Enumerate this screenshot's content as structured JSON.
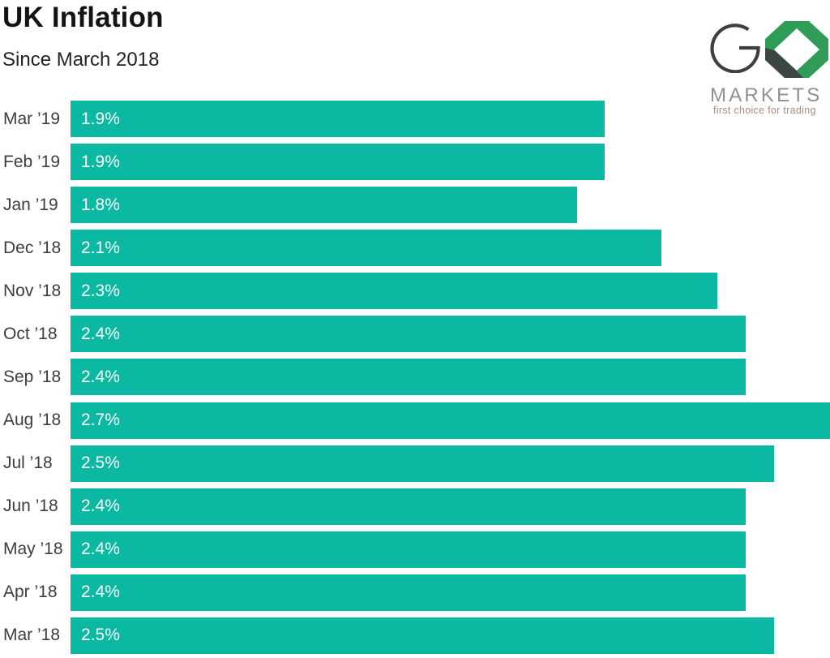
{
  "header": {
    "title": "UK Inflation",
    "subtitle": "Since March 2018"
  },
  "logo": {
    "brand": "GO",
    "brand_name": "MARKETS",
    "tagline": "first choice for trading",
    "colors": {
      "g_stroke": "#3b413f",
      "octagon_green": "#2f9c57",
      "octagon_dark": "#3e4643",
      "diamond_white": "#ffffff",
      "markets_gray": "#8f9091",
      "tagline_brown": "#a78e7f"
    }
  },
  "chart_data": {
    "type": "bar",
    "orientation": "horizontal",
    "title": "UK Inflation",
    "subtitle": "Since March 2018",
    "categories": [
      "Mar ’19",
      "Feb ’19",
      "Jan ’19",
      "Dec ’18",
      "Nov ’18",
      "Oct ’18",
      "Sep ’18",
      "Aug ’18",
      "Jul ’18",
      "Jun ’18",
      "May ’18",
      "Apr ’18",
      "Mar ’18"
    ],
    "values": [
      1.9,
      1.9,
      1.8,
      2.1,
      2.3,
      2.4,
      2.4,
      2.7,
      2.5,
      2.4,
      2.4,
      2.4,
      2.5
    ],
    "value_labels": [
      "1.9%",
      "1.9%",
      "1.8%",
      "2.1%",
      "2.3%",
      "2.4%",
      "2.4%",
      "2.7%",
      "2.5%",
      "2.4%",
      "2.4%",
      "2.4%",
      "2.5%"
    ],
    "unit": "%",
    "xlim": [
      0,
      2.7
    ],
    "bar_color": "#0bb8a1",
    "category_label_color": "#3d3d3d",
    "value_label_color": "#ffffff",
    "grid": false,
    "legend": false
  }
}
